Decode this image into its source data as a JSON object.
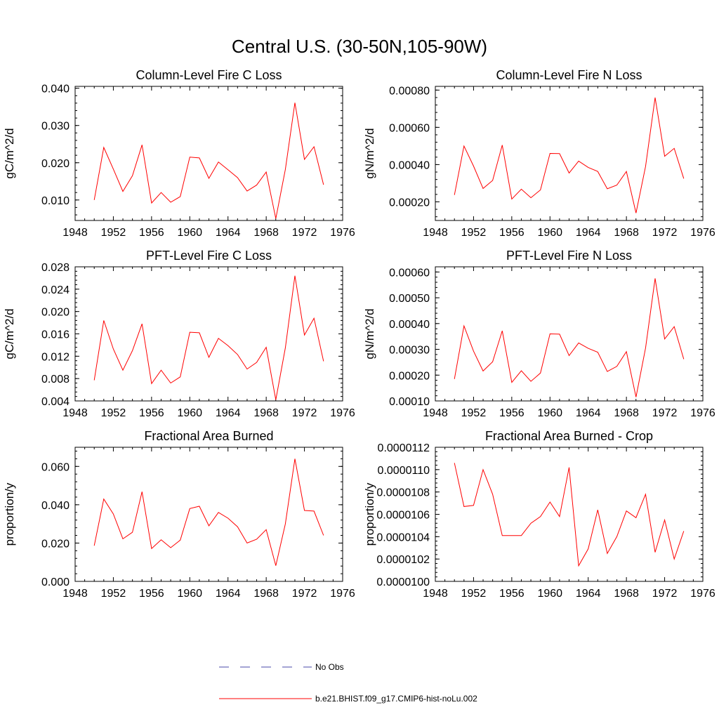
{
  "figure_title": "Central U.S. (30-50N,105-90W)",
  "legend": [
    {
      "label": "No Obs",
      "color": "#4a4aa8",
      "dash": true
    },
    {
      "label": "b.e21.BHIST.f09_g17.CMIP6-hist-noLu.002",
      "color": "#ff0000",
      "dash": false
    }
  ],
  "chart_data": [
    {
      "type": "line",
      "title": "Column-Level Fire C Loss",
      "xlabel": "",
      "ylabel": "gC/m^2/d",
      "xlim": [
        1948,
        1976
      ],
      "ylim": [
        0.0045,
        0.0405
      ],
      "xticks": [
        1948,
        1952,
        1956,
        1960,
        1964,
        1968,
        1972,
        1976
      ],
      "yticks": [
        0.01,
        0.02,
        0.03,
        0.04
      ],
      "ytick_labels": [
        "0.010",
        "0.020",
        "0.030",
        "0.040"
      ],
      "series": [
        {
          "name": "b.e21.BHIST.f09_g17.CMIP6-hist-noLu.002",
          "x": [
            1950,
            1951,
            1952,
            1953,
            1954,
            1955,
            1956,
            1957,
            1958,
            1959,
            1960,
            1961,
            1962,
            1963,
            1964,
            1965,
            1966,
            1967,
            1968,
            1969,
            1970,
            1971,
            1972,
            1973,
            1974
          ],
          "values": [
            0.01,
            0.0241,
            0.0183,
            0.0123,
            0.0165,
            0.0248,
            0.0092,
            0.012,
            0.0094,
            0.0109,
            0.0215,
            0.0213,
            0.0158,
            0.0202,
            0.0181,
            0.016,
            0.0124,
            0.014,
            0.0175,
            0.005,
            0.0182,
            0.0361,
            0.0209,
            0.0243,
            0.0141
          ]
        }
      ]
    },
    {
      "type": "line",
      "title": "Column-Level Fire N Loss",
      "xlabel": "",
      "ylabel": "gN/m^2/d",
      "xlim": [
        1948,
        1976
      ],
      "ylim": [
        0.0001,
        0.00082
      ],
      "xticks": [
        1948,
        1952,
        1956,
        1960,
        1964,
        1968,
        1972,
        1976
      ],
      "yticks": [
        0.0002,
        0.0004,
        0.0006,
        0.0008
      ],
      "ytick_labels": [
        "0.00020",
        "0.00040",
        "0.00060",
        "0.00080"
      ],
      "series": [
        {
          "name": "b.e21.BHIST.f09_g17.CMIP6-hist-noLu.002",
          "x": [
            1950,
            1951,
            1952,
            1953,
            1954,
            1955,
            1956,
            1957,
            1958,
            1959,
            1960,
            1961,
            1962,
            1963,
            1964,
            1965,
            1966,
            1967,
            1968,
            1969,
            1970,
            1971,
            1972,
            1973,
            1974
          ],
          "values": [
            0.000237,
            0.0005,
            0.000392,
            0.000272,
            0.000315,
            0.000505,
            0.000215,
            0.000268,
            0.000222,
            0.000264,
            0.00046,
            0.000459,
            0.000355,
            0.000419,
            0.000385,
            0.000363,
            0.00027,
            0.00029,
            0.000363,
            0.00014,
            0.00039,
            0.00076,
            0.000445,
            0.000487,
            0.000325
          ]
        }
      ]
    },
    {
      "type": "line",
      "title": "PFT-Level Fire C Loss",
      "xlabel": "",
      "ylabel": "gC/m^2/d",
      "xlim": [
        1948,
        1976
      ],
      "ylim": [
        0.004,
        0.028
      ],
      "xticks": [
        1948,
        1952,
        1956,
        1960,
        1964,
        1968,
        1972,
        1976
      ],
      "yticks": [
        0.004,
        0.008,
        0.012,
        0.016,
        0.02,
        0.024,
        0.028
      ],
      "ytick_labels": [
        "0.004",
        "0.008",
        "0.012",
        "0.016",
        "0.020",
        "0.024",
        "0.028"
      ],
      "series": [
        {
          "name": "b.e21.BHIST.f09_g17.CMIP6-hist-noLu.002",
          "x": [
            1950,
            1951,
            1952,
            1953,
            1954,
            1955,
            1956,
            1957,
            1958,
            1959,
            1960,
            1961,
            1962,
            1963,
            1964,
            1965,
            1966,
            1967,
            1968,
            1969,
            1970,
            1971,
            1972,
            1973,
            1974
          ],
          "values": [
            0.0077,
            0.0184,
            0.0133,
            0.0095,
            0.013,
            0.0178,
            0.0071,
            0.0095,
            0.0072,
            0.0083,
            0.0163,
            0.0162,
            0.0118,
            0.0152,
            0.0139,
            0.0123,
            0.0097,
            0.0109,
            0.0136,
            0.0042,
            0.0135,
            0.0264,
            0.0158,
            0.0188,
            0.0111
          ]
        }
      ]
    },
    {
      "type": "line",
      "title": "PFT-Level Fire N Loss",
      "xlabel": "",
      "ylabel": "gN/m^2/d",
      "xlim": [
        1948,
        1976
      ],
      "ylim": [
        0.0001,
        0.00062
      ],
      "xticks": [
        1948,
        1952,
        1956,
        1960,
        1964,
        1968,
        1972,
        1976
      ],
      "yticks": [
        0.0001,
        0.0002,
        0.0003,
        0.0004,
        0.0005,
        0.0006
      ],
      "ytick_labels": [
        "0.00010",
        "0.00020",
        "0.00030",
        "0.00040",
        "0.00050",
        "0.00060"
      ],
      "series": [
        {
          "name": "b.e21.BHIST.f09_g17.CMIP6-hist-noLu.002",
          "x": [
            1950,
            1951,
            1952,
            1953,
            1954,
            1955,
            1956,
            1957,
            1958,
            1959,
            1960,
            1961,
            1962,
            1963,
            1964,
            1965,
            1966,
            1967,
            1968,
            1969,
            1970,
            1971,
            1972,
            1973,
            1974
          ],
          "values": [
            0.000185,
            0.000391,
            0.000293,
            0.000216,
            0.000252,
            0.000372,
            0.000172,
            0.000217,
            0.000176,
            0.000208,
            0.00036,
            0.000359,
            0.000276,
            0.000325,
            0.000304,
            0.000289,
            0.000214,
            0.000234,
            0.000291,
            0.000115,
            0.000305,
            0.000575,
            0.00034,
            0.000388,
            0.000262
          ]
        }
      ]
    },
    {
      "type": "line",
      "title": "Fractional Area Burned",
      "xlabel": "",
      "ylabel": "proportion/y",
      "xlim": [
        1948,
        1976
      ],
      "ylim": [
        0.0,
        0.07
      ],
      "xticks": [
        1948,
        1952,
        1956,
        1960,
        1964,
        1968,
        1972,
        1976
      ],
      "yticks": [
        0.0,
        0.02,
        0.04,
        0.06
      ],
      "ytick_labels": [
        "0.000",
        "0.020",
        "0.040",
        "0.060"
      ],
      "series": [
        {
          "name": "b.e21.BHIST.f09_g17.CMIP6-hist-noLu.002",
          "x": [
            1950,
            1951,
            1952,
            1953,
            1954,
            1955,
            1956,
            1957,
            1958,
            1959,
            1960,
            1961,
            1962,
            1963,
            1964,
            1965,
            1966,
            1967,
            1968,
            1969,
            1970,
            1971,
            1972,
            1973,
            1974
          ],
          "values": [
            0.0186,
            0.043,
            0.0352,
            0.0222,
            0.0256,
            0.0468,
            0.0171,
            0.0217,
            0.0176,
            0.0215,
            0.038,
            0.0392,
            0.029,
            0.036,
            0.033,
            0.0285,
            0.02,
            0.022,
            0.027,
            0.0082,
            0.03,
            0.064,
            0.037,
            0.0367,
            0.024
          ]
        }
      ]
    },
    {
      "type": "line",
      "title": "Fractional Area Burned - Crop",
      "xlabel": "",
      "ylabel": "proportion/y",
      "xlim": [
        1948,
        1976
      ],
      "ylim": [
        1e-05,
        1.12e-05
      ],
      "xticks": [
        1948,
        1952,
        1956,
        1960,
        1964,
        1968,
        1972,
        1976
      ],
      "yticks": [
        1e-05,
        1.02e-05,
        1.04e-05,
        1.06e-05,
        1.08e-05,
        1.1e-05,
        1.12e-05
      ],
      "ytick_labels": [
        "0.0000100",
        "0.0000102",
        "0.0000104",
        "0.0000106",
        "0.0000108",
        "0.0000110",
        "0.0000112"
      ],
      "series": [
        {
          "name": "b.e21.BHIST.f09_g17.CMIP6-hist-noLu.002",
          "x": [
            1950,
            1951,
            1952,
            1953,
            1954,
            1955,
            1956,
            1957,
            1958,
            1959,
            1960,
            1961,
            1962,
            1963,
            1964,
            1965,
            1966,
            1967,
            1968,
            1969,
            1970,
            1971,
            1972,
            1973,
            1974
          ],
          "values": [
            1.106e-05,
            1.067e-05,
            1.068e-05,
            1.1e-05,
            1.078e-05,
            1.041e-05,
            1.041e-05,
            1.041e-05,
            1.052e-05,
            1.058e-05,
            1.071e-05,
            1.058e-05,
            1.102e-05,
            1.014e-05,
            1.029e-05,
            1.064e-05,
            1.025e-05,
            1.04e-05,
            1.063e-05,
            1.057e-05,
            1.078e-05,
            1.026e-05,
            1.055e-05,
            1.02e-05,
            1.045e-05
          ]
        }
      ]
    }
  ]
}
